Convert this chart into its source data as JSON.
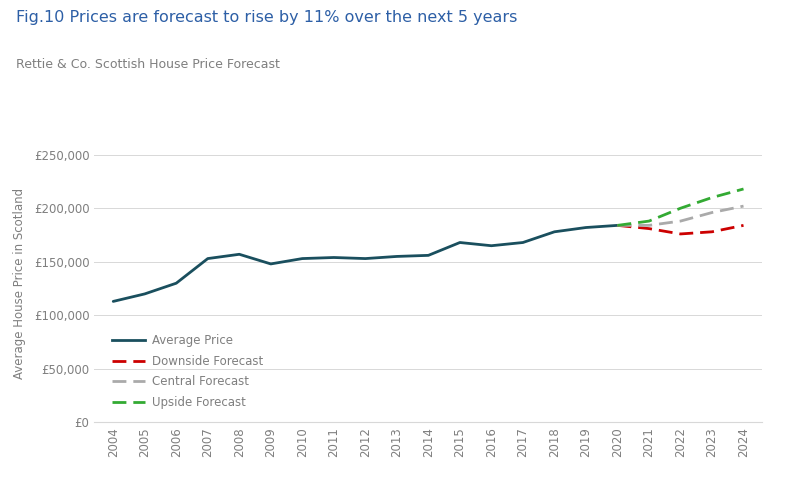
{
  "title": "Fig.10 Prices are forecast to rise by 11% over the next 5 years",
  "subtitle": "Rettie & Co. Scottish House Price Forecast",
  "ylabel": "Average House Price in Scotland",
  "title_color": "#2d5fa6",
  "subtitle_color": "#7f7f7f",
  "label_color": "#7f7f7f",
  "avg_years": [
    2004,
    2005,
    2006,
    2007,
    2008,
    2009,
    2010,
    2011,
    2012,
    2013,
    2014,
    2015,
    2016,
    2017,
    2018,
    2019,
    2020
  ],
  "avg_values": [
    113000,
    120000,
    130000,
    153000,
    157000,
    148000,
    153000,
    154000,
    153000,
    155000,
    156000,
    168000,
    165000,
    168000,
    178000,
    182000,
    184000
  ],
  "downside_years": [
    2020,
    2021,
    2022,
    2023,
    2024
  ],
  "downside_values": [
    184000,
    181000,
    176000,
    178000,
    184000
  ],
  "central_years": [
    2020,
    2021,
    2022,
    2023,
    2024
  ],
  "central_values": [
    184000,
    184000,
    188000,
    196000,
    202000
  ],
  "upside_years": [
    2020,
    2021,
    2022,
    2023,
    2024
  ],
  "upside_values": [
    184000,
    188000,
    200000,
    210000,
    218000
  ],
  "avg_color": "#1a4f5e",
  "downside_color": "#cc0000",
  "central_color": "#aaaaaa",
  "upside_color": "#33aa33",
  "ylim": [
    0,
    260000
  ],
  "yticks": [
    0,
    50000,
    100000,
    150000,
    200000,
    250000
  ],
  "ytick_labels": [
    "£0",
    "£50,000",
    "£100,000",
    "£150,000",
    "£200,000",
    "£250,000"
  ],
  "bg_color": "#ffffff",
  "grid_color": "#d8d8d8"
}
